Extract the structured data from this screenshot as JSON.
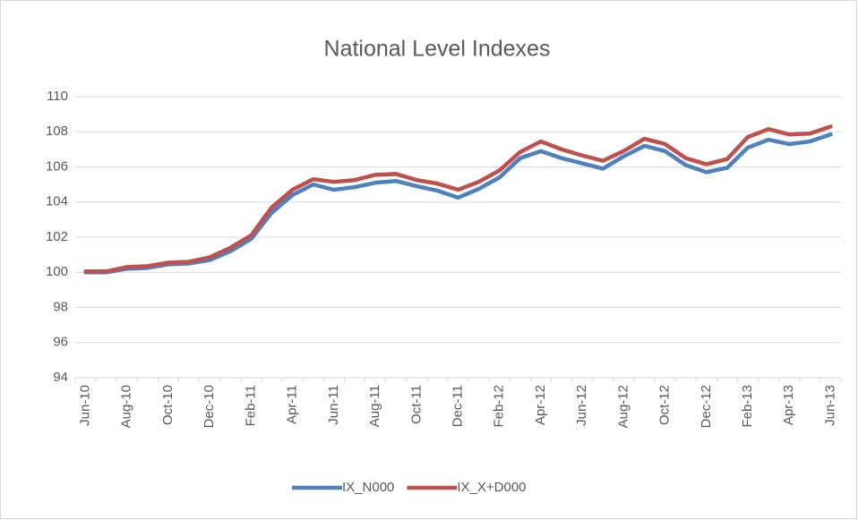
{
  "chart_data": {
    "type": "line",
    "title": "National Level Indexes",
    "categories": [
      "Jun-10",
      null,
      "Aug-10",
      null,
      "Oct-10",
      null,
      "Dec-10",
      null,
      "Feb-11",
      null,
      "Apr-11",
      null,
      "Jun-11",
      null,
      "Aug-11",
      null,
      "Oct-11",
      null,
      "Dec-11",
      null,
      "Feb-12",
      null,
      "Apr-12",
      null,
      "Jun-12",
      null,
      "Aug-12",
      null,
      "Oct-12",
      null,
      "Dec-12",
      null,
      "Feb-13",
      null,
      "Apr-13",
      null,
      "Jun-13"
    ],
    "series": [
      {
        "name": "IX_N000",
        "color": "#4f81bd",
        "values": [
          100,
          100,
          100.2,
          100.25,
          100.45,
          100.5,
          100.7,
          101.2,
          101.9,
          103.4,
          104.4,
          105.0,
          104.7,
          104.85,
          105.1,
          105.2,
          104.9,
          104.65,
          104.25,
          104.75,
          105.4,
          106.5,
          106.9,
          106.5,
          106.2,
          105.9,
          106.6,
          107.2,
          106.9,
          106.1,
          105.7,
          105.95,
          107.1,
          107.55,
          107.3,
          107.45,
          107.85
        ]
      },
      {
        "name": "IX_X+D000",
        "color": "#c0504d",
        "values": [
          100.05,
          100.05,
          100.3,
          100.35,
          100.55,
          100.6,
          100.85,
          101.4,
          102.1,
          103.7,
          104.7,
          105.3,
          105.15,
          105.25,
          105.55,
          105.6,
          105.25,
          105.05,
          104.7,
          105.15,
          105.8,
          106.85,
          107.45,
          107.0,
          106.65,
          106.35,
          106.9,
          107.6,
          107.3,
          106.5,
          106.15,
          106.45,
          107.7,
          108.15,
          107.85,
          107.9,
          108.3
        ]
      }
    ],
    "ylim": [
      94,
      110
    ],
    "yticks": [
      94,
      96,
      98,
      100,
      102,
      104,
      106,
      108,
      110
    ],
    "grid": true,
    "legend": "bottom"
  }
}
